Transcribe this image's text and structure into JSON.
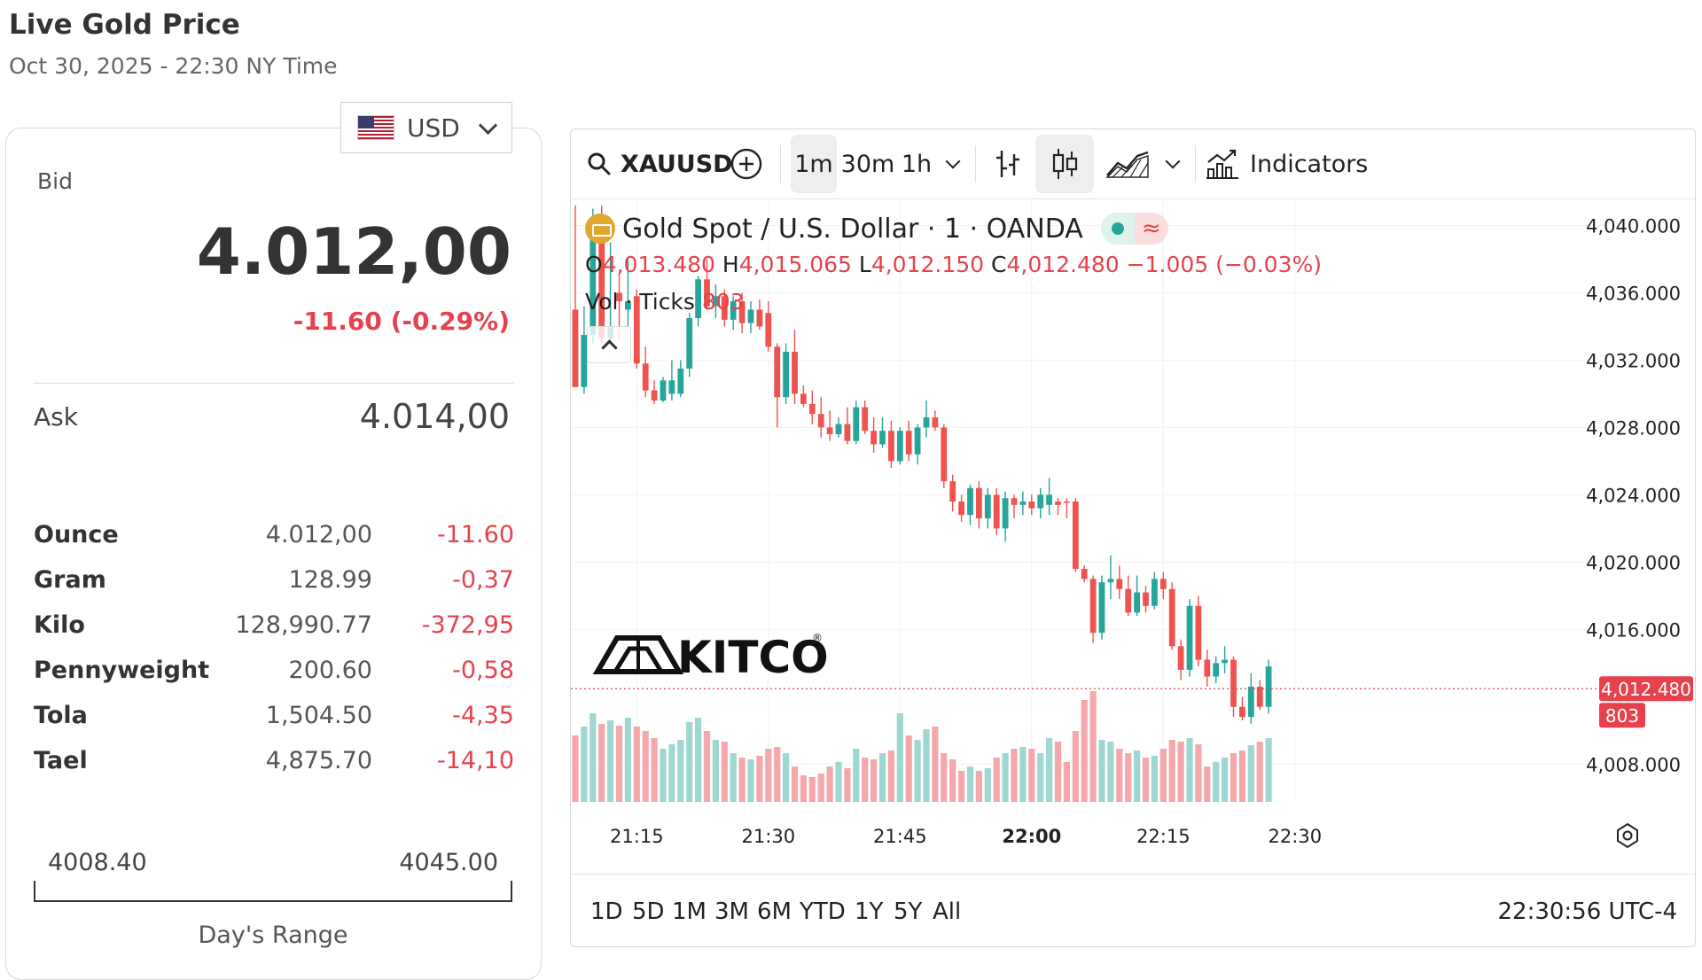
{
  "page": {
    "title": "Live Gold Price",
    "subtitle": "Oct 30, 2025 - 22:30 NY Time"
  },
  "currency": {
    "code": "USD",
    "icon": "us-flag-icon"
  },
  "bid": {
    "label": "Bid",
    "value": "4.012,00",
    "change": "-11.60 (-0.29%)"
  },
  "ask": {
    "label": "Ask",
    "value": "4.014,00"
  },
  "units": [
    {
      "name": "Ounce",
      "value": "4.012,00",
      "change": "-11.60"
    },
    {
      "name": "Gram",
      "value": "128.99",
      "change": "-0,37"
    },
    {
      "name": "Kilo",
      "value": "128,990.77",
      "change": "-372,95"
    },
    {
      "name": "Pennyweight",
      "value": "200.60",
      "change": "-0,58"
    },
    {
      "name": "Tola",
      "value": "1,504.50",
      "change": "-4,35"
    },
    {
      "name": "Tael",
      "value": "4,875.70",
      "change": "-14,10"
    }
  ],
  "days_range": {
    "low": "4008.40",
    "high": "4045.00",
    "label": "Day's Range"
  },
  "toolbar": {
    "symbol": "XAUUSD",
    "intervals": [
      "1m",
      "30m",
      "1h"
    ],
    "active_interval": "1m",
    "indicators_label": "Indicators"
  },
  "legend": {
    "name": "Gold Spot / U.S. Dollar · 1 · OANDA",
    "o_label": "O",
    "o": "4,013.480",
    "h_label": "H",
    "h": "4,015.065",
    "l_label": "L",
    "l": "4,012.150",
    "c_label": "C",
    "c": "4,012.480",
    "chg": "−1.005 (−0.03%)",
    "vol_label": "Vol · Ticks",
    "vol": "803"
  },
  "watermark": "KITCO",
  "range_buttons": [
    "1D",
    "5D",
    "1M",
    "3M",
    "6M",
    "YTD",
    "1Y",
    "5Y",
    "All"
  ],
  "clock": "22:30:56 UTC-4",
  "colors": {
    "up": "#26a69a",
    "down": "#ef5350",
    "up_vol": "#9fd8d2",
    "down_vol": "#f4a8ac",
    "price_tag": "#e5424d"
  },
  "chart_data": {
    "type": "candlestick",
    "symbol": "XAUUSD",
    "interval": "1m",
    "y_ticks": [
      "4,040.000",
      "4,036.000",
      "4,032.000",
      "4,028.000",
      "4,024.000",
      "4,020.000",
      "4,016.000",
      "4,008.000"
    ],
    "y_tick_values": [
      4040,
      4036,
      4032,
      4028,
      4024,
      4020,
      4016,
      4008
    ],
    "x_ticks": [
      "21:15",
      "21:30",
      "21:45",
      "22:00",
      "22:15",
      "22:30"
    ],
    "x_tick_index": [
      7,
      22,
      37,
      52,
      67,
      82
    ],
    "ylim": [
      4005.7,
      4041.5
    ],
    "last_price": "4,012.480",
    "last_price_value": 4012.48,
    "last_volume": "803",
    "candles": [
      [
        4035.0,
        4041.2,
        4030.5,
        4030.4,
        0,
        75
      ],
      [
        4030.4,
        4035.2,
        4030.0,
        4033.5,
        1,
        85
      ],
      [
        4033.5,
        4041.0,
        4033.0,
        4039.5,
        1,
        100
      ],
      [
        4039.5,
        4041.2,
        4033.0,
        4033.3,
        0,
        88
      ],
      [
        4033.3,
        4039.0,
        4033.0,
        4034.0,
        1,
        92
      ],
      [
        4036.0,
        4037.2,
        4033.2,
        4035.5,
        0,
        86
      ],
      [
        4035.5,
        4038.0,
        4034.0,
        4035.0,
        1,
        95
      ],
      [
        4035.8,
        4036.2,
        4031.5,
        4031.8,
        0,
        85
      ],
      [
        4031.8,
        4032.8,
        4029.8,
        4030.2,
        0,
        80
      ],
      [
        4030.2,
        4030.8,
        4029.4,
        4029.6,
        0,
        72
      ],
      [
        4029.6,
        4031.0,
        4029.5,
        4030.8,
        1,
        60
      ],
      [
        4030.8,
        4032.0,
        4029.6,
        4030.0,
        1,
        65
      ],
      [
        4030.0,
        4032.0,
        4029.8,
        4031.5,
        1,
        70
      ],
      [
        4031.5,
        4034.8,
        4031.0,
        4034.5,
        1,
        90
      ],
      [
        4034.5,
        4037.0,
        4034.0,
        4036.8,
        1,
        95
      ],
      [
        4036.8,
        4038.0,
        4035.0,
        4035.2,
        0,
        80
      ],
      [
        4035.2,
        4036.5,
        4034.5,
        4035.8,
        1,
        70
      ],
      [
        4035.8,
        4036.2,
        4034.0,
        4034.4,
        0,
        68
      ],
      [
        4034.4,
        4035.8,
        4033.8,
        4035.5,
        1,
        55
      ],
      [
        4035.5,
        4036.0,
        4033.6,
        4034.2,
        0,
        50
      ],
      [
        4034.2,
        4035.5,
        4033.6,
        4035.0,
        1,
        48
      ],
      [
        4035.0,
        4035.6,
        4033.8,
        4034.0,
        0,
        52
      ],
      [
        4034.8,
        4035.5,
        4032.5,
        4032.8,
        0,
        60
      ],
      [
        4032.8,
        4033.0,
        4028.0,
        4029.8,
        0,
        62
      ],
      [
        4029.8,
        4033.0,
        4029.4,
        4032.5,
        1,
        55
      ],
      [
        4032.5,
        4033.8,
        4029.4,
        4030.0,
        0,
        40
      ],
      [
        4030.0,
        4030.5,
        4029.2,
        4029.4,
        0,
        30
      ],
      [
        4029.4,
        4030.2,
        4028.2,
        4028.8,
        0,
        28
      ],
      [
        4028.8,
        4029.8,
        4027.4,
        4028.0,
        0,
        32
      ],
      [
        4028.0,
        4029.0,
        4027.2,
        4027.6,
        0,
        40
      ],
      [
        4027.6,
        4028.6,
        4027.4,
        4028.2,
        1,
        45
      ],
      [
        4028.2,
        4029.2,
        4027.0,
        4027.2,
        0,
        38
      ],
      [
        4027.2,
        4029.6,
        4027.0,
        4029.2,
        1,
        60
      ],
      [
        4029.2,
        4029.6,
        4027.6,
        4027.8,
        0,
        50
      ],
      [
        4027.8,
        4028.6,
        4026.5,
        4027.0,
        0,
        48
      ],
      [
        4027.0,
        4028.6,
        4026.8,
        4027.8,
        1,
        55
      ],
      [
        4027.8,
        4028.4,
        4025.6,
        4026.0,
        0,
        58
      ],
      [
        4026.0,
        4028.0,
        4025.8,
        4027.8,
        1,
        100
      ],
      [
        4027.8,
        4028.4,
        4026.0,
        4026.4,
        0,
        75
      ],
      [
        4026.4,
        4028.2,
        4025.8,
        4028.0,
        1,
        70
      ],
      [
        4028.0,
        4029.6,
        4027.4,
        4028.6,
        1,
        82
      ],
      [
        4028.6,
        4029.0,
        4027.8,
        4028.0,
        0,
        85
      ],
      [
        4028.0,
        4028.2,
        4024.4,
        4024.8,
        0,
        55
      ],
      [
        4024.8,
        4025.2,
        4023.0,
        4023.6,
        0,
        48
      ],
      [
        4023.6,
        4024.0,
        4022.4,
        4022.8,
        0,
        35
      ],
      [
        4022.8,
        4024.6,
        4022.2,
        4024.4,
        1,
        40
      ],
      [
        4024.4,
        4024.8,
        4022.0,
        4022.6,
        0,
        35
      ],
      [
        4022.6,
        4024.4,
        4022.0,
        4024.0,
        1,
        38
      ],
      [
        4024.0,
        4024.4,
        4021.6,
        4022.0,
        0,
        50
      ],
      [
        4022.0,
        4024.2,
        4021.2,
        4023.8,
        1,
        55
      ],
      [
        4023.8,
        4024.0,
        4022.6,
        4023.4,
        0,
        60
      ],
      [
        4023.4,
        4024.2,
        4022.8,
        4023.6,
        1,
        62
      ],
      [
        4023.6,
        4024.0,
        4022.8,
        4023.2,
        0,
        60
      ],
      [
        4023.2,
        4024.4,
        4022.6,
        4024.0,
        1,
        55
      ],
      [
        4024.0,
        4025.0,
        4022.8,
        4023.4,
        1,
        72
      ],
      [
        4023.4,
        4023.8,
        4022.8,
        4023.6,
        0,
        68
      ],
      [
        4023.6,
        4023.8,
        4022.6,
        4023.6,
        0,
        45
      ],
      [
        4023.6,
        4023.8,
        4019.4,
        4019.6,
        0,
        80
      ],
      [
        4019.6,
        4019.8,
        4018.8,
        4019.0,
        0,
        115
      ],
      [
        4019.0,
        4019.2,
        4015.2,
        4015.8,
        0,
        125
      ],
      [
        4015.8,
        4019.2,
        4015.4,
        4018.8,
        1,
        70
      ],
      [
        4018.8,
        4020.4,
        4017.8,
        4019.0,
        1,
        68
      ],
      [
        4019.0,
        4019.8,
        4017.8,
        4018.4,
        0,
        60
      ],
      [
        4018.4,
        4019.2,
        4016.8,
        4017.0,
        0,
        55
      ],
      [
        4017.0,
        4019.2,
        4016.8,
        4018.2,
        1,
        58
      ],
      [
        4018.2,
        4018.6,
        4017.0,
        4017.4,
        0,
        50
      ],
      [
        4017.4,
        4019.4,
        4017.2,
        4019.0,
        1,
        52
      ],
      [
        4019.0,
        4019.4,
        4017.8,
        4018.4,
        0,
        60
      ],
      [
        4018.4,
        4018.8,
        4014.8,
        4015.0,
        0,
        70
      ],
      [
        4015.0,
        4015.4,
        4013.0,
        4013.6,
        0,
        68
      ],
      [
        4013.6,
        4017.8,
        4013.2,
        4017.4,
        1,
        72
      ],
      [
        4017.4,
        4018.0,
        4013.8,
        4014.2,
        0,
        65
      ],
      [
        4014.2,
        4014.8,
        4012.6,
        4013.2,
        0,
        40
      ],
      [
        4013.2,
        4014.4,
        4012.8,
        4014.0,
        1,
        45
      ],
      [
        4014.0,
        4015.0,
        4013.4,
        4014.2,
        1,
        50
      ],
      [
        4014.2,
        4014.4,
        4010.8,
        4011.4,
        0,
        55
      ],
      [
        4011.4,
        4012.0,
        4010.6,
        4010.8,
        0,
        58
      ],
      [
        4010.8,
        4013.4,
        4010.4,
        4012.6,
        1,
        64
      ],
      [
        4012.6,
        4013.0,
        4011.2,
        4011.4,
        0,
        68
      ],
      [
        4011.4,
        4014.2,
        4011.0,
        4013.8,
        1,
        72
      ]
    ]
  }
}
